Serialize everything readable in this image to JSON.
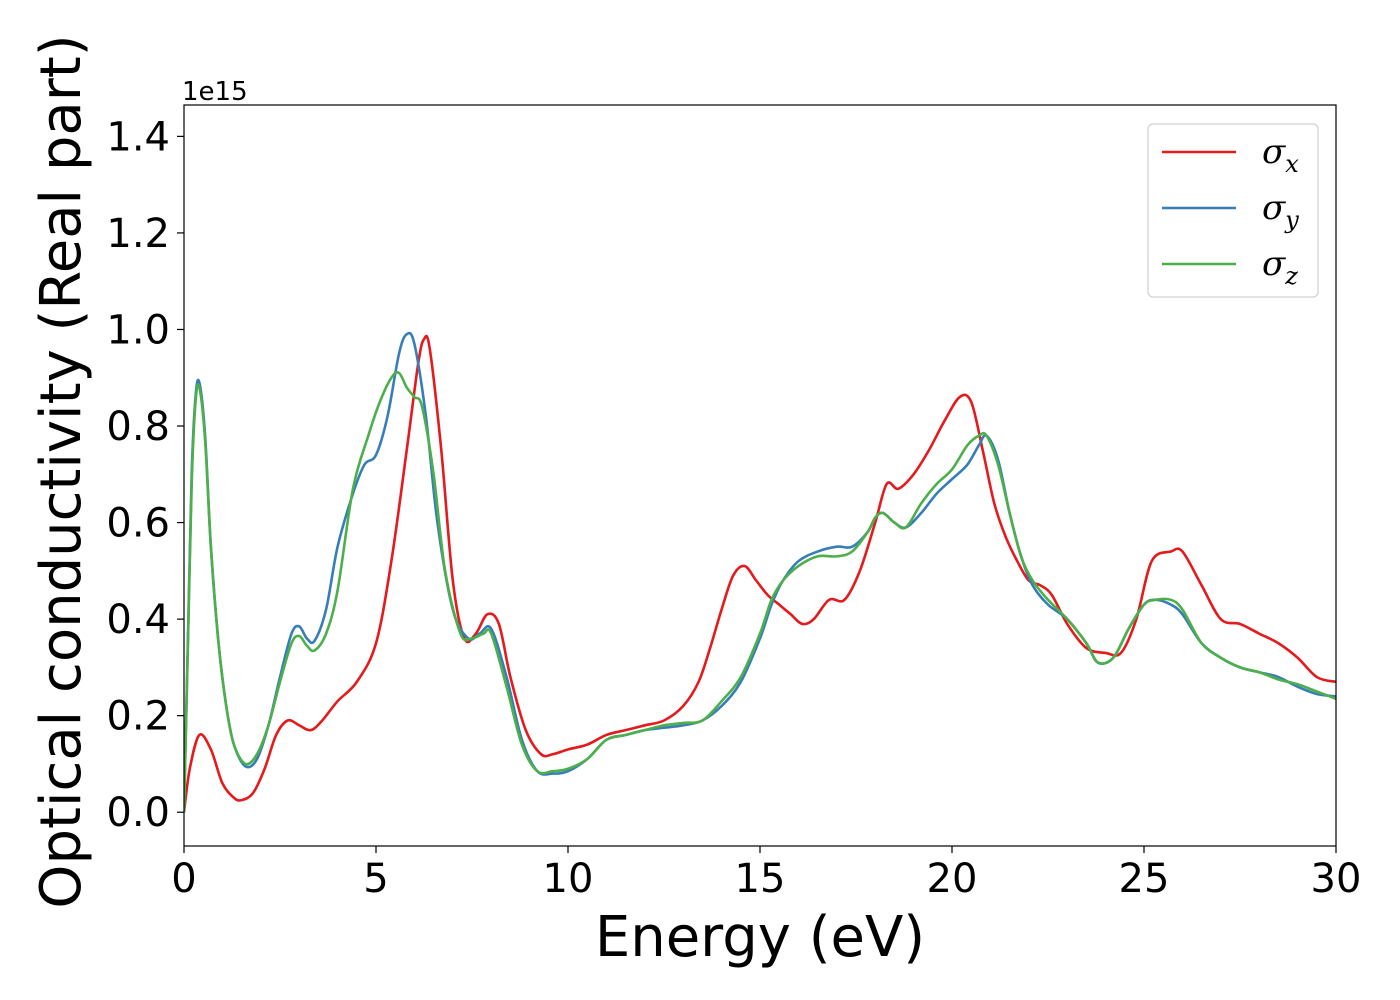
{
  "chart_data": {
    "type": "line",
    "xlabel": "Energy (eV)",
    "ylabel": "Optical conductivity (Real part)",
    "y_offset_label": "1e15",
    "xlim": [
      0,
      30
    ],
    "ylim": [
      -0.07,
      1.465
    ],
    "xticks": [
      0,
      5,
      10,
      15,
      20,
      25,
      30
    ],
    "yticks": [
      0.0,
      0.2,
      0.4,
      0.6,
      0.8,
      1.0,
      1.2,
      1.4
    ],
    "xtick_labels": [
      "0",
      "5",
      "10",
      "15",
      "20",
      "25",
      "30"
    ],
    "ytick_labels": [
      "0.0",
      "0.2",
      "0.4",
      "0.6",
      "0.8",
      "1.0",
      "1.2",
      "1.4"
    ],
    "grid": false,
    "legend_position": "top-right",
    "series": [
      {
        "name": "σx",
        "name_base": "σ",
        "name_sub": "x",
        "color": "#e41a1c",
        "x": [
          0,
          0.15,
          0.4,
          0.7,
          1.0,
          1.3,
          1.5,
          1.8,
          2.1,
          2.4,
          2.7,
          3.0,
          3.3,
          3.6,
          4.0,
          4.5,
          5.0,
          5.4,
          5.8,
          6.1,
          6.25,
          6.4,
          6.7,
          7.0,
          7.3,
          7.6,
          7.9,
          8.2,
          8.5,
          8.9,
          9.3,
          9.6,
          10.0,
          10.5,
          11.0,
          11.5,
          12.0,
          12.5,
          13.0,
          13.4,
          13.7,
          14.0,
          14.3,
          14.6,
          14.9,
          15.2,
          15.5,
          15.8,
          16.1,
          16.4,
          16.8,
          17.2,
          17.6,
          18.0,
          18.3,
          18.6,
          19.0,
          19.4,
          19.8,
          20.2,
          20.5,
          20.8,
          21.1,
          21.4,
          21.7,
          22.0,
          22.3,
          22.6,
          23.0,
          23.5,
          24.0,
          24.4,
          24.8,
          25.2,
          25.7,
          26.0,
          26.5,
          27.0,
          27.5,
          28.0,
          28.5,
          29.0,
          29.5,
          30.0
        ],
        "values": [
          0.0,
          0.09,
          0.16,
          0.13,
          0.06,
          0.03,
          0.025,
          0.04,
          0.09,
          0.16,
          0.19,
          0.18,
          0.17,
          0.19,
          0.23,
          0.27,
          0.35,
          0.52,
          0.75,
          0.93,
          0.98,
          0.96,
          0.75,
          0.48,
          0.36,
          0.37,
          0.41,
          0.39,
          0.28,
          0.17,
          0.12,
          0.12,
          0.13,
          0.14,
          0.16,
          0.17,
          0.18,
          0.19,
          0.22,
          0.27,
          0.34,
          0.42,
          0.49,
          0.51,
          0.48,
          0.45,
          0.43,
          0.41,
          0.39,
          0.4,
          0.44,
          0.44,
          0.5,
          0.6,
          0.68,
          0.67,
          0.7,
          0.75,
          0.81,
          0.86,
          0.85,
          0.75,
          0.64,
          0.57,
          0.52,
          0.48,
          0.47,
          0.45,
          0.39,
          0.34,
          0.33,
          0.33,
          0.4,
          0.52,
          0.54,
          0.54,
          0.47,
          0.4,
          0.39,
          0.37,
          0.35,
          0.32,
          0.28,
          0.27
        ]
      },
      {
        "name": "σy",
        "name_base": "σ",
        "name_sub": "y",
        "color": "#377eb8",
        "x": [
          0,
          0.1,
          0.2,
          0.3,
          0.4,
          0.55,
          0.7,
          0.9,
          1.1,
          1.3,
          1.6,
          1.9,
          2.2,
          2.5,
          2.8,
          3.0,
          3.2,
          3.4,
          3.7,
          4.0,
          4.4,
          4.7,
          5.0,
          5.3,
          5.6,
          5.8,
          6.0,
          6.3,
          6.6,
          7.0,
          7.4,
          7.7,
          8.0,
          8.4,
          8.8,
          9.2,
          9.6,
          10.0,
          10.5,
          11.0,
          11.5,
          12.0,
          12.5,
          13.0,
          13.5,
          14.0,
          14.5,
          15.0,
          15.3,
          15.6,
          16.0,
          16.5,
          17.0,
          17.4,
          17.8,
          18.0,
          18.2,
          18.5,
          18.8,
          19.2,
          19.6,
          20.0,
          20.4,
          20.7,
          20.9,
          21.2,
          21.5,
          21.8,
          22.1,
          22.5,
          23.0,
          23.5,
          23.8,
          24.2,
          24.6,
          25.0,
          25.3,
          25.7,
          26.0,
          26.5,
          27.0,
          27.5,
          28.0,
          28.5,
          29.0,
          29.5,
          30.0
        ],
        "values": [
          0.0,
          0.35,
          0.7,
          0.86,
          0.89,
          0.78,
          0.55,
          0.35,
          0.22,
          0.14,
          0.095,
          0.11,
          0.18,
          0.28,
          0.37,
          0.385,
          0.36,
          0.355,
          0.42,
          0.55,
          0.66,
          0.72,
          0.74,
          0.82,
          0.95,
          0.99,
          0.97,
          0.82,
          0.6,
          0.42,
          0.36,
          0.37,
          0.38,
          0.28,
          0.15,
          0.085,
          0.08,
          0.085,
          0.11,
          0.15,
          0.16,
          0.17,
          0.175,
          0.18,
          0.19,
          0.22,
          0.27,
          0.36,
          0.43,
          0.48,
          0.52,
          0.54,
          0.55,
          0.55,
          0.58,
          0.61,
          0.62,
          0.6,
          0.59,
          0.62,
          0.66,
          0.69,
          0.72,
          0.76,
          0.78,
          0.73,
          0.62,
          0.53,
          0.47,
          0.43,
          0.4,
          0.35,
          0.31,
          0.32,
          0.38,
          0.43,
          0.44,
          0.43,
          0.41,
          0.35,
          0.32,
          0.3,
          0.29,
          0.28,
          0.26,
          0.245,
          0.24
        ]
      },
      {
        "name": "σz",
        "name_base": "σ",
        "name_sub": "z",
        "color": "#4daf4a",
        "x": [
          0,
          0.1,
          0.2,
          0.3,
          0.4,
          0.55,
          0.7,
          0.9,
          1.1,
          1.3,
          1.6,
          1.9,
          2.2,
          2.5,
          2.8,
          3.0,
          3.2,
          3.4,
          3.7,
          4.0,
          4.4,
          4.8,
          5.1,
          5.4,
          5.6,
          5.8,
          6.0,
          6.2,
          6.5,
          6.8,
          7.2,
          7.5,
          7.8,
          8.0,
          8.4,
          8.8,
          9.2,
          9.6,
          10.0,
          10.5,
          11.0,
          11.5,
          12.0,
          12.5,
          13.0,
          13.5,
          14.0,
          14.5,
          15.0,
          15.3,
          15.6,
          16.0,
          16.5,
          17.0,
          17.4,
          17.8,
          18.0,
          18.2,
          18.5,
          18.8,
          19.2,
          19.6,
          20.0,
          20.4,
          20.7,
          20.9,
          21.2,
          21.5,
          21.8,
          22.1,
          22.5,
          23.0,
          23.5,
          23.8,
          24.2,
          24.6,
          25.0,
          25.3,
          25.7,
          26.0,
          26.5,
          27.0,
          27.5,
          28.0,
          28.5,
          29.0,
          29.5,
          30.0
        ],
        "values": [
          0.0,
          0.34,
          0.68,
          0.85,
          0.88,
          0.77,
          0.55,
          0.35,
          0.22,
          0.14,
          0.1,
          0.12,
          0.18,
          0.27,
          0.35,
          0.365,
          0.345,
          0.335,
          0.37,
          0.46,
          0.67,
          0.78,
          0.85,
          0.9,
          0.91,
          0.88,
          0.86,
          0.84,
          0.7,
          0.5,
          0.37,
          0.36,
          0.37,
          0.37,
          0.26,
          0.14,
          0.085,
          0.085,
          0.09,
          0.11,
          0.15,
          0.16,
          0.17,
          0.18,
          0.185,
          0.19,
          0.23,
          0.28,
          0.37,
          0.44,
          0.48,
          0.51,
          0.53,
          0.53,
          0.54,
          0.58,
          0.61,
          0.62,
          0.6,
          0.59,
          0.64,
          0.68,
          0.71,
          0.76,
          0.78,
          0.78,
          0.72,
          0.62,
          0.53,
          0.48,
          0.44,
          0.4,
          0.35,
          0.31,
          0.32,
          0.38,
          0.43,
          0.44,
          0.44,
          0.42,
          0.35,
          0.32,
          0.3,
          0.29,
          0.275,
          0.265,
          0.25,
          0.235
        ]
      }
    ]
  }
}
